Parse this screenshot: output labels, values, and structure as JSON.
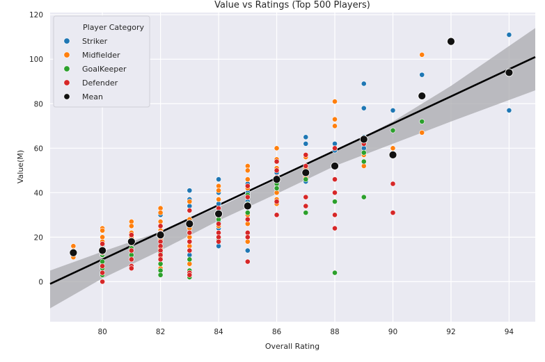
{
  "chart_data": {
    "type": "scatter",
    "title": "Value vs Ratings (Top 500 Players)",
    "xlabel": "Overall Rating",
    "ylabel": "Value(M)",
    "xlim": [
      78.2,
      94.9
    ],
    "ylim": [
      -18,
      121
    ],
    "xticks": [
      80,
      82,
      84,
      86,
      88,
      90,
      92,
      94
    ],
    "yticks": [
      0,
      20,
      40,
      60,
      80,
      100,
      120
    ],
    "grid": true,
    "background_color": "#eaeaf2",
    "legend": {
      "title": "Player Category",
      "position": "top-left",
      "entries": [
        {
          "name": "Striker",
          "color": "#1f77b4"
        },
        {
          "name": "Midfielder",
          "color": "#ff7f0e"
        },
        {
          "name": "GoalKeeper",
          "color": "#2ca02c"
        },
        {
          "name": "Defender",
          "color": "#d62728"
        },
        {
          "name": "Mean",
          "color": "#111111"
        }
      ]
    },
    "series": [
      {
        "name": "Striker",
        "color": "#1f77b4",
        "points": [
          [
            80,
            20
          ],
          [
            80,
            16
          ],
          [
            80,
            14
          ],
          [
            81,
            22
          ],
          [
            81,
            19
          ],
          [
            82,
            30
          ],
          [
            82,
            27
          ],
          [
            82,
            23
          ],
          [
            83,
            41
          ],
          [
            83,
            37
          ],
          [
            83,
            34
          ],
          [
            83,
            28
          ],
          [
            83,
            24
          ],
          [
            83,
            12
          ],
          [
            84,
            46
          ],
          [
            84,
            40
          ],
          [
            84,
            35
          ],
          [
            84,
            31
          ],
          [
            84,
            27
          ],
          [
            84,
            24
          ],
          [
            84,
            16
          ],
          [
            85,
            46
          ],
          [
            85,
            44
          ],
          [
            85,
            40
          ],
          [
            85,
            36
          ],
          [
            85,
            33
          ],
          [
            85,
            14
          ],
          [
            86,
            49
          ],
          [
            86,
            46
          ],
          [
            86,
            42
          ],
          [
            87,
            65
          ],
          [
            87,
            62
          ],
          [
            87,
            49
          ],
          [
            87,
            45
          ],
          [
            88,
            62
          ],
          [
            88,
            59
          ],
          [
            89,
            89
          ],
          [
            89,
            78
          ],
          [
            89,
            65
          ],
          [
            89,
            60
          ],
          [
            90,
            77
          ],
          [
            91,
            93
          ],
          [
            91,
            84
          ],
          [
            94,
            111
          ],
          [
            94,
            77
          ]
        ]
      },
      {
        "name": "Midfielder",
        "color": "#ff7f0e",
        "points": [
          [
            79,
            16
          ],
          [
            79,
            14
          ],
          [
            79,
            11
          ],
          [
            80,
            24
          ],
          [
            80,
            23
          ],
          [
            80,
            20
          ],
          [
            80,
            18
          ],
          [
            80,
            15
          ],
          [
            80,
            12
          ],
          [
            81,
            27
          ],
          [
            81,
            25
          ],
          [
            81,
            22
          ],
          [
            81,
            20
          ],
          [
            81,
            17
          ],
          [
            81,
            14
          ],
          [
            82,
            33
          ],
          [
            82,
            31
          ],
          [
            82,
            27
          ],
          [
            82,
            23
          ],
          [
            82,
            19
          ],
          [
            82,
            15
          ],
          [
            82,
            11
          ],
          [
            82,
            8
          ],
          [
            82,
            6
          ],
          [
            83,
            36
          ],
          [
            83,
            32
          ],
          [
            83,
            28
          ],
          [
            83,
            24
          ],
          [
            83,
            20
          ],
          [
            83,
            16
          ],
          [
            83,
            8
          ],
          [
            84,
            43
          ],
          [
            84,
            41
          ],
          [
            84,
            37
          ],
          [
            84,
            33
          ],
          [
            84,
            29
          ],
          [
            84,
            25
          ],
          [
            85,
            52
          ],
          [
            85,
            50
          ],
          [
            85,
            46
          ],
          [
            85,
            42
          ],
          [
            85,
            38
          ],
          [
            85,
            34
          ],
          [
            85,
            30
          ],
          [
            85,
            26
          ],
          [
            85,
            18
          ],
          [
            86,
            60
          ],
          [
            86,
            55
          ],
          [
            86,
            51
          ],
          [
            86,
            47
          ],
          [
            86,
            40
          ],
          [
            86,
            37
          ],
          [
            86,
            35
          ],
          [
            87,
            56
          ],
          [
            87,
            51
          ],
          [
            87,
            47
          ],
          [
            88,
            81
          ],
          [
            88,
            73
          ],
          [
            88,
            70
          ],
          [
            88,
            60
          ],
          [
            89,
            57
          ],
          [
            89,
            52
          ],
          [
            90,
            60
          ],
          [
            91,
            102
          ],
          [
            91,
            67
          ]
        ]
      },
      {
        "name": "GoalKeeper",
        "color": "#2ca02c",
        "points": [
          [
            80,
            12
          ],
          [
            80,
            9
          ],
          [
            80,
            6
          ],
          [
            80,
            3
          ],
          [
            81,
            15
          ],
          [
            81,
            12
          ],
          [
            81,
            10
          ],
          [
            82,
            13
          ],
          [
            82,
            10
          ],
          [
            82,
            8
          ],
          [
            82,
            5
          ],
          [
            82,
            3
          ],
          [
            83,
            22
          ],
          [
            83,
            18
          ],
          [
            83,
            14
          ],
          [
            83,
            10
          ],
          [
            83,
            5
          ],
          [
            83,
            2
          ],
          [
            84,
            31
          ],
          [
            84,
            28
          ],
          [
            84,
            22
          ],
          [
            84,
            19
          ],
          [
            85,
            39
          ],
          [
            85,
            35
          ],
          [
            85,
            31
          ],
          [
            86,
            44
          ],
          [
            86,
            42
          ],
          [
            87,
            46
          ],
          [
            87,
            31
          ],
          [
            88,
            36
          ],
          [
            88,
            30
          ],
          [
            88,
            4
          ],
          [
            89,
            58
          ],
          [
            89,
            54
          ],
          [
            89,
            38
          ],
          [
            90,
            68
          ],
          [
            91,
            72
          ]
        ]
      },
      {
        "name": "Defender",
        "color": "#d62728",
        "points": [
          [
            80,
            17
          ],
          [
            80,
            13
          ],
          [
            80,
            7
          ],
          [
            80,
            4
          ],
          [
            80,
            0
          ],
          [
            81,
            21
          ],
          [
            81,
            18
          ],
          [
            81,
            14
          ],
          [
            81,
            10
          ],
          [
            81,
            7
          ],
          [
            81,
            6
          ],
          [
            82,
            25
          ],
          [
            82,
            22
          ],
          [
            82,
            18
          ],
          [
            82,
            16
          ],
          [
            82,
            14
          ],
          [
            82,
            12
          ],
          [
            82,
            10
          ],
          [
            83,
            32
          ],
          [
            83,
            26
          ],
          [
            83,
            22
          ],
          [
            83,
            18
          ],
          [
            83,
            14
          ],
          [
            83,
            4
          ],
          [
            83,
            3
          ],
          [
            84,
            33
          ],
          [
            84,
            30
          ],
          [
            84,
            26
          ],
          [
            84,
            22
          ],
          [
            84,
            20
          ],
          [
            84,
            18
          ],
          [
            85,
            43
          ],
          [
            85,
            38
          ],
          [
            85,
            34
          ],
          [
            85,
            28
          ],
          [
            85,
            22
          ],
          [
            85,
            20
          ],
          [
            85,
            9
          ],
          [
            86,
            54
          ],
          [
            86,
            50
          ],
          [
            86,
            47
          ],
          [
            86,
            36
          ],
          [
            86,
            30
          ],
          [
            87,
            57
          ],
          [
            87,
            52
          ],
          [
            87,
            38
          ],
          [
            87,
            34
          ],
          [
            88,
            60
          ],
          [
            88,
            46
          ],
          [
            88,
            40
          ],
          [
            88,
            30
          ],
          [
            88,
            24
          ],
          [
            89,
            62
          ],
          [
            90,
            57
          ],
          [
            90,
            44
          ],
          [
            90,
            31
          ]
        ]
      },
      {
        "name": "Mean",
        "color": "#111111",
        "points": [
          [
            79,
            13
          ],
          [
            80,
            14
          ],
          [
            81,
            18
          ],
          [
            82,
            21
          ],
          [
            83,
            26
          ],
          [
            84,
            30.5
          ],
          [
            85,
            34
          ],
          [
            86,
            46
          ],
          [
            87,
            49
          ],
          [
            88,
            52
          ],
          [
            89,
            64
          ],
          [
            90,
            57
          ],
          [
            91,
            83.5
          ],
          [
            92,
            108
          ],
          [
            94,
            94
          ]
        ]
      }
    ],
    "regression": {
      "line": [
        [
          78.2,
          -1
        ],
        [
          94.9,
          101
        ]
      ],
      "ci_upper": [
        [
          78.2,
          5
        ],
        [
          80,
          13.5
        ],
        [
          82,
          22.5
        ],
        [
          84,
          33.5
        ],
        [
          86,
          46
        ],
        [
          88,
          58.5
        ],
        [
          90,
          72
        ],
        [
          92,
          88
        ],
        [
          94.9,
          114
        ]
      ],
      "ci_lower": [
        [
          78.2,
          -12
        ],
        [
          80,
          1.5
        ],
        [
          82,
          14
        ],
        [
          84,
          27.5
        ],
        [
          86,
          39.5
        ],
        [
          88,
          52
        ],
        [
          90,
          62
        ],
        [
          92,
          72
        ],
        [
          94.9,
          86
        ]
      ],
      "line_color": "#000000",
      "ci_color": "#a9a9ad"
    }
  }
}
